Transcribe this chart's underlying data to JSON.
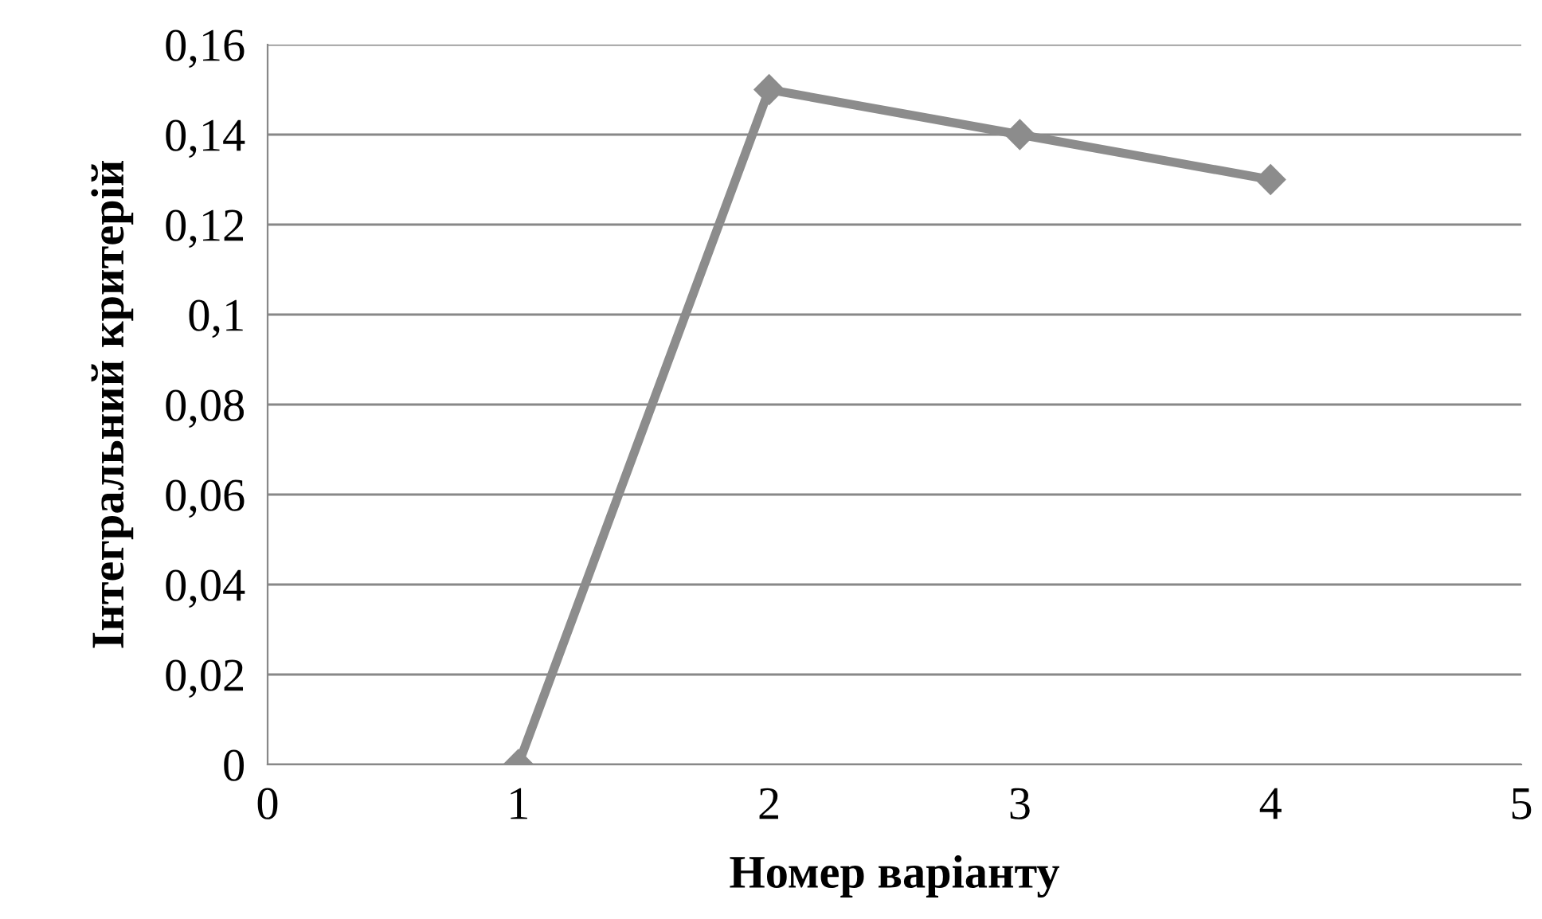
{
  "chart_data": {
    "type": "line",
    "xlabel": "Номер варіанту",
    "ylabel": "Інтегральний критерій",
    "x": [
      1,
      2,
      3,
      4
    ],
    "series": [
      {
        "color": "#8c8c8c",
        "values": [
          0,
          0.15,
          0.14,
          0.13
        ]
      }
    ],
    "xlim": [
      0,
      5
    ],
    "xticks": [
      0,
      1,
      2,
      3,
      4,
      5
    ],
    "ylim": [
      0,
      0.16
    ],
    "yticks": [
      0,
      {
        "value": 0.02,
        "label": "0,02"
      },
      {
        "value": 0.04,
        "label": "0,04"
      },
      {
        "value": 0.06,
        "label": "0,06"
      },
      {
        "value": 0.08,
        "label": "0,08"
      },
      {
        "value": 0.1,
        "label": "0,1"
      },
      {
        "value": 0.12,
        "label": "0,12"
      },
      {
        "value": 0.14,
        "label": "0,14"
      },
      {
        "value": 0.16,
        "label": "0,16"
      }
    ],
    "grid": "y",
    "marker": "diamond",
    "line_style": "solid",
    "legend": false
  }
}
